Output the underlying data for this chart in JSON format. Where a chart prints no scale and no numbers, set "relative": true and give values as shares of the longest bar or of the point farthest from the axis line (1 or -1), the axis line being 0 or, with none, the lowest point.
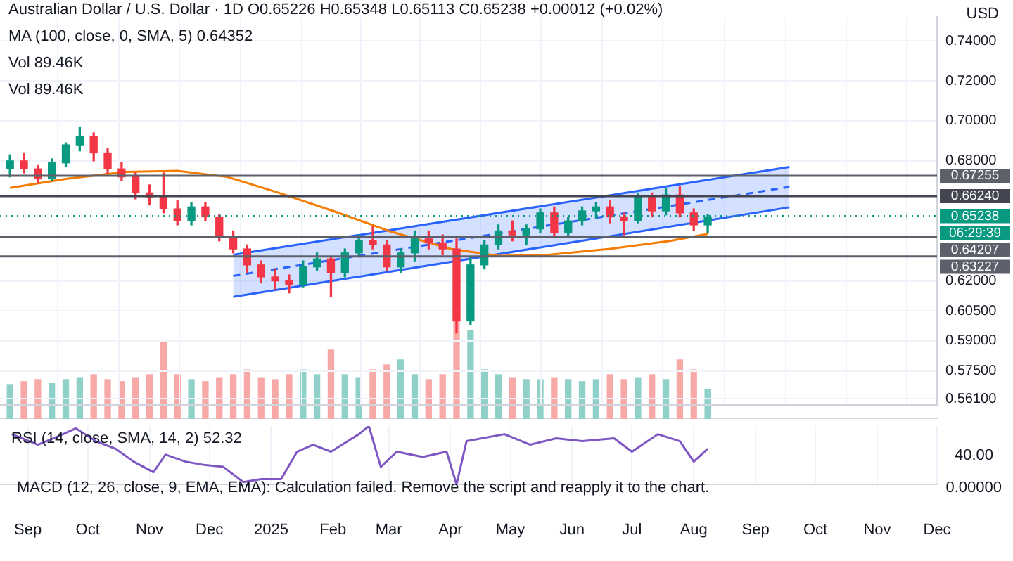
{
  "chart_data": [
    {
      "type": "candlestick",
      "title": "Australian Dollar / U.S. Dollar · 1D",
      "ylabel": "USD",
      "annotations": [
        "O0.65226 H0.65348 L0.65113 C0.65238 +0.00012 (+0.02%)",
        "MA (100, close, 0, SMA, 5) 0.64352",
        "Vol 89.46K",
        "Vol 89.46K",
        "06:29:39"
      ],
      "x": [
        "2024-08-23",
        "2024-08-30",
        "2024-09-06",
        "2024-09-13",
        "2024-09-20",
        "2024-09-27",
        "2024-10-04",
        "2024-10-11",
        "2024-10-18",
        "2024-10-25",
        "2024-11-01",
        "2024-11-08",
        "2024-11-15",
        "2024-11-22",
        "2024-11-29",
        "2024-12-06",
        "2024-12-13",
        "2024-12-20",
        "2024-12-27",
        "2025-01-03",
        "2025-01-10",
        "2025-01-17",
        "2025-01-24",
        "2025-01-31",
        "2025-02-07",
        "2025-02-14",
        "2025-02-21",
        "2025-02-28",
        "2025-03-07",
        "2025-03-14",
        "2025-03-21",
        "2025-03-28",
        "2025-04-04",
        "2025-04-11",
        "2025-04-18",
        "2025-04-25",
        "2025-05-02",
        "2025-05-09",
        "2025-05-16",
        "2025-05-23",
        "2025-05-30",
        "2025-06-06",
        "2025-06-13",
        "2025-06-20",
        "2025-06-27",
        "2025-07-04",
        "2025-07-11",
        "2025-07-18",
        "2025-07-25",
        "2025-08-01",
        "2025-08-08"
      ],
      "ohlc": [
        [
          0.676,
          0.683,
          0.672,
          0.68
        ],
        [
          0.68,
          0.684,
          0.674,
          0.676
        ],
        [
          0.676,
          0.678,
          0.669,
          0.671
        ],
        [
          0.671,
          0.681,
          0.67,
          0.679
        ],
        [
          0.679,
          0.689,
          0.677,
          0.688
        ],
        [
          0.688,
          0.697,
          0.685,
          0.692
        ],
        [
          0.692,
          0.694,
          0.68,
          0.684
        ],
        [
          0.684,
          0.686,
          0.674,
          0.676
        ],
        [
          0.676,
          0.679,
          0.67,
          0.672
        ],
        [
          0.672,
          0.674,
          0.661,
          0.664
        ],
        [
          0.664,
          0.668,
          0.658,
          0.662
        ],
        [
          0.662,
          0.674,
          0.654,
          0.656
        ],
        [
          0.656,
          0.66,
          0.648,
          0.65
        ],
        [
          0.65,
          0.659,
          0.648,
          0.657
        ],
        [
          0.657,
          0.659,
          0.65,
          0.652
        ],
        [
          0.652,
          0.653,
          0.64,
          0.642
        ],
        [
          0.642,
          0.645,
          0.634,
          0.636
        ],
        [
          0.636,
          0.638,
          0.624,
          0.628
        ],
        [
          0.628,
          0.63,
          0.619,
          0.622
        ],
        [
          0.622,
          0.626,
          0.616,
          0.62
        ],
        [
          0.62,
          0.623,
          0.614,
          0.618
        ],
        [
          0.618,
          0.63,
          0.617,
          0.627
        ],
        [
          0.627,
          0.634,
          0.625,
          0.631
        ],
        [
          0.631,
          0.632,
          0.612,
          0.624
        ],
        [
          0.624,
          0.636,
          0.622,
          0.634
        ],
        [
          0.634,
          0.643,
          0.632,
          0.64
        ],
        [
          0.64,
          0.647,
          0.636,
          0.638
        ],
        [
          0.638,
          0.64,
          0.625,
          0.627
        ],
        [
          0.627,
          0.636,
          0.624,
          0.634
        ],
        [
          0.634,
          0.645,
          0.63,
          0.641
        ],
        [
          0.641,
          0.645,
          0.636,
          0.639
        ],
        [
          0.639,
          0.643,
          0.633,
          0.636
        ],
        [
          0.636,
          0.641,
          0.594,
          0.6
        ],
        [
          0.6,
          0.632,
          0.598,
          0.628
        ],
        [
          0.628,
          0.64,
          0.626,
          0.638
        ],
        [
          0.638,
          0.648,
          0.636,
          0.645
        ],
        [
          0.645,
          0.65,
          0.64,
          0.643
        ],
        [
          0.643,
          0.648,
          0.638,
          0.646
        ],
        [
          0.646,
          0.656,
          0.644,
          0.654
        ],
        [
          0.654,
          0.657,
          0.642,
          0.644
        ],
        [
          0.644,
          0.652,
          0.642,
          0.65
        ],
        [
          0.65,
          0.657,
          0.648,
          0.655
        ],
        [
          0.655,
          0.659,
          0.651,
          0.657
        ],
        [
          0.657,
          0.66,
          0.649,
          0.652
        ],
        [
          0.652,
          0.654,
          0.643,
          0.65
        ],
        [
          0.65,
          0.664,
          0.649,
          0.662
        ],
        [
          0.662,
          0.664,
          0.652,
          0.655
        ],
        [
          0.655,
          0.666,
          0.653,
          0.663
        ],
        [
          0.663,
          0.667,
          0.652,
          0.654
        ],
        [
          0.654,
          0.656,
          0.645,
          0.648
        ],
        [
          0.648,
          0.653,
          0.644,
          0.652
        ]
      ],
      "colors": [
        "#089981",
        "#f23645",
        "#f23645",
        "#089981",
        "#089981",
        "#089981",
        "#f23645",
        "#f23645",
        "#f23645",
        "#f23645",
        "#f23645",
        "#f23645",
        "#f23645",
        "#089981",
        "#f23645",
        "#f23645",
        "#f23645",
        "#f23645",
        "#f23645",
        "#f23645",
        "#f23645",
        "#089981",
        "#089981",
        "#f23645",
        "#089981",
        "#089981",
        "#f23645",
        "#f23645",
        "#089981",
        "#089981",
        "#f23645",
        "#f23645",
        "#f23645",
        "#089981",
        "#089981",
        "#089981",
        "#f23645",
        "#089981",
        "#089981",
        "#f23645",
        "#089981",
        "#089981",
        "#089981",
        "#f23645",
        "#f23645",
        "#089981",
        "#f23645",
        "#089981",
        "#f23645",
        "#f23645",
        "#089981"
      ],
      "series": [
        {
          "type": "line",
          "color": "#f57c00",
          "x": [
            "2024-08-23",
            "2024-09-20",
            "2024-10-20",
            "2024-11-15",
            "2024-12-10",
            "2025-01-05",
            "2025-02-01",
            "2025-03-01",
            "2025-04-01",
            "2025-04-25",
            "2025-05-20",
            "2025-06-20",
            "2025-07-20",
            "2025-08-08"
          ],
          "values": [
            0.6665,
            0.671,
            0.6745,
            0.675,
            0.672,
            0.664,
            0.655,
            0.645,
            0.636,
            0.6325,
            0.633,
            0.636,
            0.64,
            0.6435
          ]
        },
        {
          "type": "line",
          "color": "#2962ff",
          "x": [
            "2024-12-13",
            "2025-09-18"
          ],
          "values": [
            0.633,
            0.677
          ]
        },
        {
          "type": "line",
          "color": "#2962ff",
          "x": [
            "2024-12-13",
            "2025-09-18"
          ],
          "values": [
            0.612,
            0.6568
          ]
        },
        {
          "type": "line",
          "color": "#2962ff",
          "line_style": "dashed",
          "x": [
            "2024-12-13",
            "2025-09-18"
          ],
          "values": [
            0.6225,
            0.667
          ],
          "lower": [
            0.612,
            0.6568
          ],
          "upper": [
            0.633,
            0.677
          ]
        }
      ],
      "ref_lines": [
        {
          "axis": "y",
          "value": 0.67255,
          "label": "0.67255",
          "color": "#5d606b"
        },
        {
          "axis": "y",
          "value": 0.6624,
          "label": "0.66240",
          "color": "#434651"
        },
        {
          "axis": "y",
          "value": 0.65238,
          "label": "0.65238",
          "color": "#089981",
          "line_style": "dotted"
        },
        {
          "axis": "y",
          "value": 0.64207,
          "label": "0.64207",
          "color": "#5d606b"
        },
        {
          "axis": "y",
          "value": 0.63227,
          "label": "0.63227",
          "color": "#5d606b"
        }
      ],
      "xlim": [
        "2024-08-18",
        "2025-12-01"
      ],
      "xticks": [
        {
          "value": "2024-09-01",
          "label": null
        },
        {
          "value": "2024-10-01",
          "label": null
        },
        {
          "value": "2024-11-01",
          "label": null
        },
        {
          "value": "2024-12-01",
          "label": null
        },
        {
          "value": "2025-01-01",
          "label": null
        },
        {
          "value": "2025-02-01",
          "label": null
        },
        {
          "value": "2025-03-01",
          "label": null
        },
        {
          "value": "2025-04-01",
          "label": null
        },
        {
          "value": "2025-05-01",
          "label": null
        },
        {
          "value": "2025-06-01",
          "label": null
        },
        {
          "value": "2025-07-01",
          "label": null
        },
        {
          "value": "2025-08-01",
          "label": null
        },
        {
          "value": "2025-09-01",
          "label": null
        },
        {
          "value": "2025-10-01",
          "label": null
        },
        {
          "value": "2025-11-01",
          "label": null
        },
        {
          "value": "2025-12-01",
          "label": null
        }
      ],
      "ylim": [
        0.558,
        0.752
      ],
      "yticks": [
        {
          "value": 0.74,
          "label": "0.74000"
        },
        {
          "value": 0.72,
          "label": "0.72000"
        },
        {
          "value": 0.7,
          "label": "0.70000"
        },
        {
          "value": 0.68,
          "label": "0.68000"
        },
        {
          "value": 0.62,
          "label": "0.62000"
        },
        {
          "value": 0.605,
          "label": "0.60500"
        },
        {
          "value": 0.59,
          "label": "0.59000"
        },
        {
          "value": 0.575,
          "label": "0.57500"
        },
        {
          "value": 0.561,
          "label": "0.56100"
        }
      ],
      "grid": true,
      "tick_labels": "y"
    },
    {
      "type": "bar",
      "relative": true,
      "tick_labels": false,
      "xlim": [
        "2024-08-18",
        "2025-12-01"
      ],
      "x": [
        "2024-08-23",
        "2024-08-30",
        "2024-09-06",
        "2024-09-13",
        "2024-09-20",
        "2024-09-27",
        "2024-10-04",
        "2024-10-11",
        "2024-10-18",
        "2024-10-25",
        "2024-11-01",
        "2024-11-08",
        "2024-11-15",
        "2024-11-22",
        "2024-11-29",
        "2024-12-06",
        "2024-12-13",
        "2024-12-20",
        "2024-12-27",
        "2025-01-03",
        "2025-01-10",
        "2025-01-17",
        "2025-01-24",
        "2025-01-31",
        "2025-02-07",
        "2025-02-14",
        "2025-02-21",
        "2025-02-28",
        "2025-03-07",
        "2025-03-14",
        "2025-03-21",
        "2025-03-28",
        "2025-04-04",
        "2025-04-11",
        "2025-04-18",
        "2025-04-25",
        "2025-05-02",
        "2025-05-09",
        "2025-05-16",
        "2025-05-23",
        "2025-05-30",
        "2025-06-06",
        "2025-06-13",
        "2025-06-20",
        "2025-06-27",
        "2025-07-04",
        "2025-07-11",
        "2025-07-18",
        "2025-07-25",
        "2025-08-01",
        "2025-08-08"
      ],
      "values": [
        0.35,
        0.38,
        0.4,
        0.36,
        0.4,
        0.42,
        0.45,
        0.4,
        0.38,
        0.42,
        0.45,
        0.8,
        0.45,
        0.4,
        0.38,
        0.42,
        0.45,
        0.5,
        0.42,
        0.4,
        0.45,
        0.5,
        0.45,
        0.7,
        0.45,
        0.42,
        0.5,
        0.55,
        0.6,
        0.45,
        0.4,
        0.45,
        1,
        0.9,
        0.5,
        0.45,
        0.42,
        0.4,
        0.4,
        0.42,
        0.4,
        0.38,
        0.4,
        0.45,
        0.4,
        0.42,
        0.45,
        0.4,
        0.6,
        0.5,
        0.3
      ],
      "colors": [
        "#8fd1c8",
        "#f7a9a7",
        "#f7a9a7",
        "#8fd1c8",
        "#8fd1c8",
        "#8fd1c8",
        "#f7a9a7",
        "#f7a9a7",
        "#f7a9a7",
        "#f7a9a7",
        "#f7a9a7",
        "#f7a9a7",
        "#f7a9a7",
        "#8fd1c8",
        "#f7a9a7",
        "#f7a9a7",
        "#f7a9a7",
        "#f7a9a7",
        "#f7a9a7",
        "#f7a9a7",
        "#f7a9a7",
        "#8fd1c8",
        "#8fd1c8",
        "#f7a9a7",
        "#8fd1c8",
        "#8fd1c8",
        "#f7a9a7",
        "#f7a9a7",
        "#8fd1c8",
        "#8fd1c8",
        "#f7a9a7",
        "#f7a9a7",
        "#f7a9a7",
        "#8fd1c8",
        "#8fd1c8",
        "#8fd1c8",
        "#f7a9a7",
        "#8fd1c8",
        "#8fd1c8",
        "#f7a9a7",
        "#8fd1c8",
        "#8fd1c8",
        "#8fd1c8",
        "#f7a9a7",
        "#f7a9a7",
        "#8fd1c8",
        "#f7a9a7",
        "#8fd1c8",
        "#f7a9a7",
        "#f7a9a7",
        "#8fd1c8"
      ]
    },
    {
      "type": "line",
      "relative": true,
      "tick_labels": "x",
      "grid": "x",
      "annotations": [
        "RSI (14, close, SMA, 14, 2) 52.32",
        "40.00"
      ],
      "xlim": [
        "2024-08-18",
        "2025-12-01"
      ],
      "xticks": [
        {
          "value": "2024-09-01",
          "label": "Sep"
        },
        {
          "value": "2024-10-01",
          "label": "Oct"
        },
        {
          "value": "2024-11-01",
          "label": "Nov"
        },
        {
          "value": "2024-12-01",
          "label": "Dec"
        },
        {
          "value": "2025-01-01",
          "label": "2025"
        },
        {
          "value": "2025-02-01",
          "label": "Feb"
        },
        {
          "value": "2025-03-01",
          "label": "Mar"
        },
        {
          "value": "2025-04-01",
          "label": "Apr"
        },
        {
          "value": "2025-05-01",
          "label": "May"
        },
        {
          "value": "2025-06-01",
          "label": "Jun"
        },
        {
          "value": "2025-07-01",
          "label": "Jul"
        },
        {
          "value": "2025-08-01",
          "label": "Aug"
        },
        {
          "value": "2025-09-01",
          "label": "Sep"
        },
        {
          "value": "2025-10-01",
          "label": "Oct"
        },
        {
          "value": "2025-11-01",
          "label": "Nov"
        },
        {
          "value": "2025-12-01",
          "label": "Dec"
        }
      ],
      "x": [
        "2024-08-24",
        "2024-09-06",
        "2024-09-16",
        "2024-09-25",
        "2024-10-05",
        "2024-10-15",
        "2024-10-24",
        "2024-11-03",
        "2024-11-09",
        "2024-11-19",
        "2024-11-29",
        "2024-12-08",
        "2024-12-18",
        "2024-12-27",
        "2025-01-06",
        "2025-01-14",
        "2025-01-22",
        "2025-01-31",
        "2025-02-14",
        "2025-02-19",
        "2025-02-25",
        "2025-03-05",
        "2025-03-18",
        "2025-03-30",
        "2025-04-04",
        "2025-04-09",
        "2025-04-28",
        "2025-05-11",
        "2025-05-24",
        "2025-06-06",
        "2025-06-22",
        "2025-07-01",
        "2025-07-14",
        "2025-07-25",
        "2025-08-01",
        "2025-08-08"
      ],
      "series": [
        {
          "color": "#7e57c2",
          "values": [
            0.86,
            0.68,
            0.82,
            0.96,
            0.74,
            0.61,
            0.39,
            0.21,
            0.51,
            0.39,
            0.33,
            0.3,
            0.04,
            0.09,
            0.09,
            0.56,
            0.68,
            0.56,
            0.86,
            1,
            0.3,
            0.56,
            0.47,
            0.56,
            0,
            0.74,
            0.86,
            0.68,
            0.79,
            0.74,
            0.79,
            0.56,
            0.86,
            0.74,
            0.39,
            0.61
          ]
        }
      ]
    },
    {
      "type": "other",
      "annotations": [
        "MACD (12, 26, close, 9, EMA, EMA): Calculation failed. Remove the script and reapply it to the chart.",
        "0.00000"
      ]
    }
  ]
}
